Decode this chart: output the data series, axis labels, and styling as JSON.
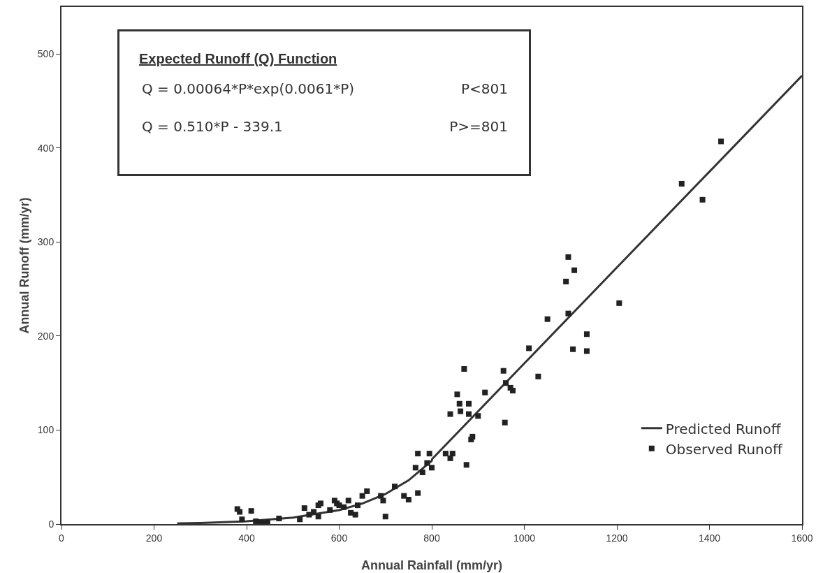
{
  "chart_data": {
    "type": "scatter",
    "xlabel": "Annual Rainfall (mm/yr)",
    "ylabel": "Annual Runoff (mm/yr)",
    "annotations": [
      "Expected Runoff (Q) Function",
      "Q = 0.00064*P*exp(0.0061*P)",
      "P<801",
      "Q = 0.510*P - 339.1",
      "P>=801"
    ],
    "xlim": [
      0,
      1600
    ],
    "ylim": [
      0,
      550
    ],
    "xticks": [
      0,
      200,
      400,
      600,
      800,
      1000,
      1200,
      1400,
      1600
    ],
    "yticks": [
      0,
      100,
      200,
      300,
      400,
      500
    ],
    "grid": false,
    "legend": "bottom right",
    "series": [
      {
        "name": "Predicted Runoff",
        "type": "line",
        "color": "#333333",
        "line_style": "solid",
        "marker": "none",
        "x": [
          250,
          300,
          400,
          500,
          600,
          650,
          700,
          750,
          800,
          801,
          1000,
          1200,
          1400,
          1600
        ],
        "values": [
          0.7,
          1.2,
          2.9,
          6.8,
          14.9,
          21.9,
          32,
          46.6,
          67.4,
          69.4,
          170.9,
          272.9,
          374.9,
          476.9
        ]
      },
      {
        "name": "Observed Runoff",
        "color": "#222222",
        "marker": "square",
        "x": [
          380,
          385,
          410,
          390,
          420,
          430,
          440,
          445,
          470,
          515,
          525,
          535,
          545,
          555,
          560,
          555,
          580,
          590,
          595,
          600,
          610,
          620,
          625,
          635,
          640,
          650,
          660,
          690,
          695,
          700,
          720,
          740,
          750,
          765,
          770,
          770,
          780,
          790,
          795,
          800,
          830,
          840,
          840,
          845,
          855,
          860,
          862,
          870,
          875,
          880,
          880,
          885,
          888,
          900,
          915,
          955,
          958,
          960,
          970,
          975,
          1010,
          1030,
          1050,
          1090,
          1095,
          1095,
          1105,
          1108,
          1135,
          1135,
          1205,
          1340,
          1385,
          1425
        ],
        "values": [
          16,
          13,
          14,
          5,
          3,
          2,
          1,
          2,
          6,
          5,
          17,
          10,
          13,
          20,
          22,
          8,
          15,
          25,
          22,
          20,
          18,
          25,
          12,
          10,
          20,
          30,
          35,
          30,
          25,
          8,
          40,
          30,
          26,
          60,
          33,
          75,
          55,
          65,
          75,
          60,
          75,
          70,
          117,
          75,
          138,
          128,
          120,
          165,
          63,
          128,
          117,
          90,
          93,
          115,
          140,
          163,
          108,
          150,
          145,
          142,
          187,
          157,
          218,
          258,
          284,
          224,
          186,
          270,
          202,
          184,
          235,
          362,
          345,
          407
        ]
      }
    ]
  }
}
